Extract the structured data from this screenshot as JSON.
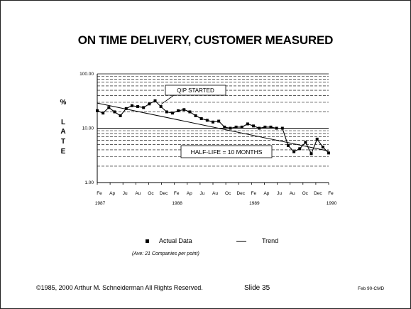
{
  "slide": {
    "title": "ON TIME DELIVERY, CUSTOMER MEASURED",
    "footer_left": "©1985, 2000 Arthur M. Schneiderman  All Rights Reserved.",
    "footer_mid": "Slide 35",
    "footer_right": "Feb 90-CMD"
  },
  "legend": {
    "actual": "Actual Data",
    "trend": "Trend",
    "note": "(Ave: 21 Companies per point)"
  },
  "chart_data": {
    "type": "line",
    "title": "ON TIME DELIVERY, CUSTOMER MEASURED",
    "ylabel_letters": [
      "%",
      "L",
      "A",
      "T",
      "E"
    ],
    "yscale": "log",
    "ylim": [
      1,
      100
    ],
    "ytick_labels": [
      "100.00",
      "10.00",
      "1.00"
    ],
    "ytick_values": [
      100,
      10,
      1
    ],
    "grid": true,
    "x_month_ticks": [
      "Fe",
      "Ap",
      "Ju",
      "Au",
      "Oc",
      "Dec",
      "Fe",
      "Ap",
      "Ju",
      "Au",
      "Oc",
      "Dec",
      "Fe",
      "Ap",
      "Ju",
      "Au",
      "Oc",
      "Dec",
      "Fe"
    ],
    "x_year_labels": [
      "1987",
      "1988",
      "1989",
      "1990"
    ],
    "series": [
      {
        "name": "Actual Data",
        "values": [
          21,
          19,
          24,
          20,
          17,
          23,
          26,
          25,
          24,
          28,
          32,
          25,
          20,
          19,
          21,
          22,
          20,
          17,
          15,
          14,
          13,
          13.5,
          10.5,
          10,
          10.5,
          10.5,
          12,
          11,
          10,
          10.5,
          10.5,
          10,
          10,
          4.8,
          3.7,
          4.2,
          5.5,
          3.4,
          6.3,
          4.5,
          3.5
        ]
      },
      {
        "name": "Trend",
        "start": 29,
        "end": 3.8
      }
    ],
    "annotations": [
      {
        "text": "QIP STARTED",
        "at_index": 11
      },
      {
        "text": "HALF-LIFE = 10 MONTHS",
        "at_index": 35
      }
    ]
  }
}
